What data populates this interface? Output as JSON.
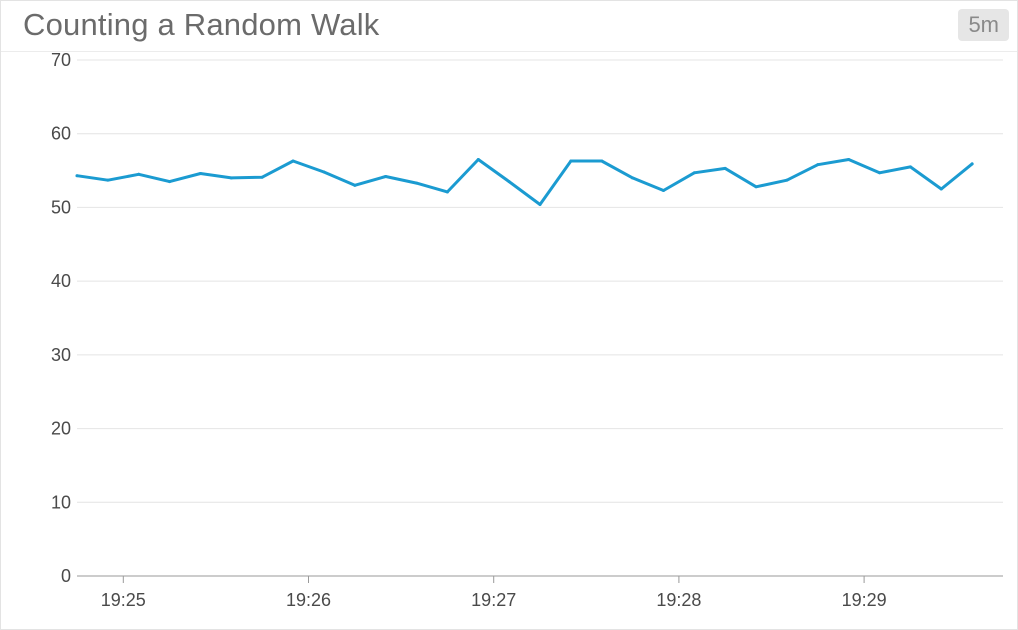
{
  "widget": {
    "title": "Counting a Random Walk",
    "time_range": "5m"
  },
  "colors": {
    "series": "#1b9bd1",
    "grid": "#e4e4e4",
    "axis": "#9a9a9a"
  },
  "chart_data": {
    "type": "line",
    "title": "Counting a Random Walk",
    "xlabel": "",
    "ylabel": "",
    "ylim": [
      0,
      70
    ],
    "yticks": [
      0,
      10,
      20,
      30,
      40,
      50,
      60,
      70
    ],
    "xlim": [
      "19:24:45",
      "19:29:45"
    ],
    "xticks": [
      "19:25",
      "19:26",
      "19:27",
      "19:28",
      "19:29"
    ],
    "grid": true,
    "legend": "none",
    "series": [
      {
        "x": [
          "19:24:45",
          "19:24:55",
          "19:25:05",
          "19:25:15",
          "19:25:25",
          "19:25:35",
          "19:25:45",
          "19:25:55",
          "19:26:05",
          "19:26:15",
          "19:26:25",
          "19:26:35",
          "19:26:45",
          "19:26:55",
          "19:27:05",
          "19:27:15",
          "19:27:25",
          "19:27:35",
          "19:27:45",
          "19:27:55",
          "19:28:05",
          "19:28:15",
          "19:28:25",
          "19:28:35",
          "19:28:45",
          "19:28:55",
          "19:29:05",
          "19:29:15",
          "19:29:25",
          "19:29:35"
        ],
        "values": [
          54.3,
          53.7,
          54.5,
          53.5,
          54.6,
          54.0,
          54.1,
          56.3,
          54.8,
          53.0,
          54.2,
          53.3,
          52.1,
          56.5,
          53.5,
          50.4,
          56.3,
          56.3,
          54.0,
          52.3,
          54.7,
          55.3,
          52.8,
          53.7,
          55.8,
          56.5,
          54.7,
          55.5,
          52.5,
          55.9
        ]
      }
    ]
  }
}
